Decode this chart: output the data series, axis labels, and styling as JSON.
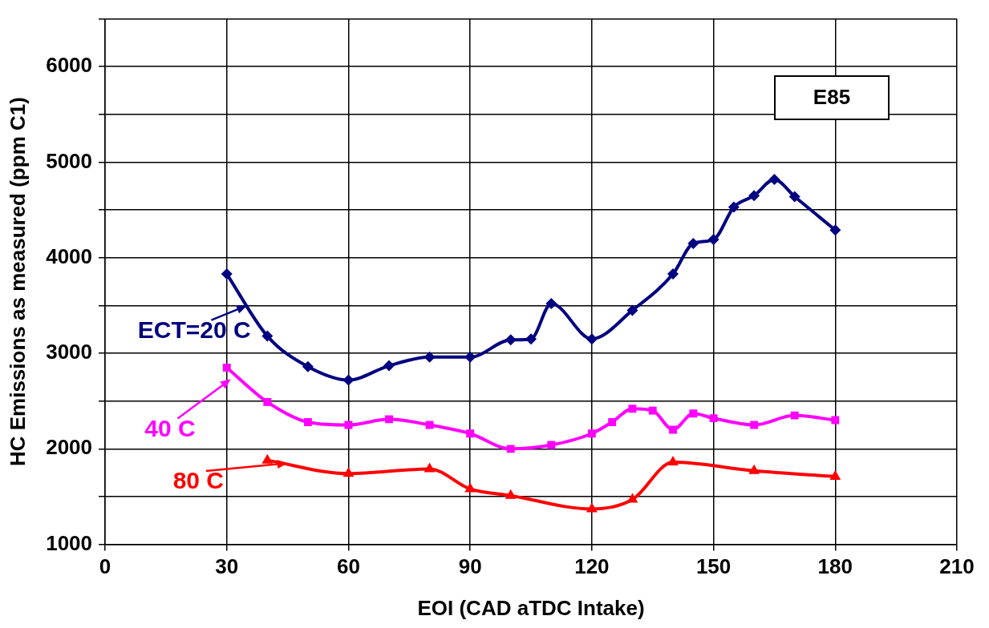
{
  "chart_data": {
    "type": "line",
    "xlabel": "EOI (CAD aTDC Intake)",
    "ylabel": "HC Emissions as measured (ppm C1)",
    "annotations": [
      "E85"
    ],
    "xlim": [
      0,
      210
    ],
    "xticks": [
      0,
      30,
      60,
      90,
      120,
      150,
      180,
      210
    ],
    "ylim": [
      1000,
      6500
    ],
    "yticks": [
      1000,
      {
        "value": 1500,
        "label": null
      },
      2000,
      {
        "value": 2500,
        "label": null
      },
      3000,
      {
        "value": 3500,
        "label": null
      },
      4000,
      {
        "value": 4500,
        "label": null
      },
      5000,
      {
        "value": 5500,
        "label": null
      },
      6000,
      {
        "value": 6500,
        "label": null
      }
    ],
    "grid": true,
    "line_style": "solid",
    "legend": "left",
    "series": [
      {
        "name": "ECT=20 C",
        "color": "#000080",
        "marker": "diamond",
        "x": [
          30,
          40,
          50,
          60,
          70,
          80,
          90,
          100,
          105,
          110,
          120,
          130,
          140,
          145,
          150,
          155,
          160,
          165,
          170,
          180
        ],
        "values": [
          3830,
          3180,
          2860,
          2720,
          2870,
          2960,
          2960,
          3140,
          3150,
          3520,
          3150,
          3450,
          3830,
          4150,
          4190,
          4530,
          4650,
          4820,
          4640,
          4290
        ]
      },
      {
        "name": "40 C",
        "color": "#ff00ff",
        "marker": "square",
        "x": [
          30,
          40,
          50,
          60,
          70,
          80,
          90,
          100,
          110,
          120,
          125,
          130,
          135,
          140,
          145,
          150,
          160,
          170,
          180
        ],
        "values": [
          2850,
          2490,
          2280,
          2250,
          2310,
          2250,
          2160,
          2000,
          2040,
          2160,
          2280,
          2420,
          2400,
          2200,
          2370,
          2320,
          2250,
          2350,
          2300
        ]
      },
      {
        "name": "80 C",
        "color": "#ff0000",
        "marker": "triangle",
        "x": [
          40,
          60,
          80,
          90,
          100,
          120,
          130,
          140,
          160,
          180
        ],
        "values": [
          1880,
          1740,
          1790,
          1580,
          1510,
          1370,
          1470,
          1860,
          1770,
          1710
        ]
      }
    ]
  }
}
